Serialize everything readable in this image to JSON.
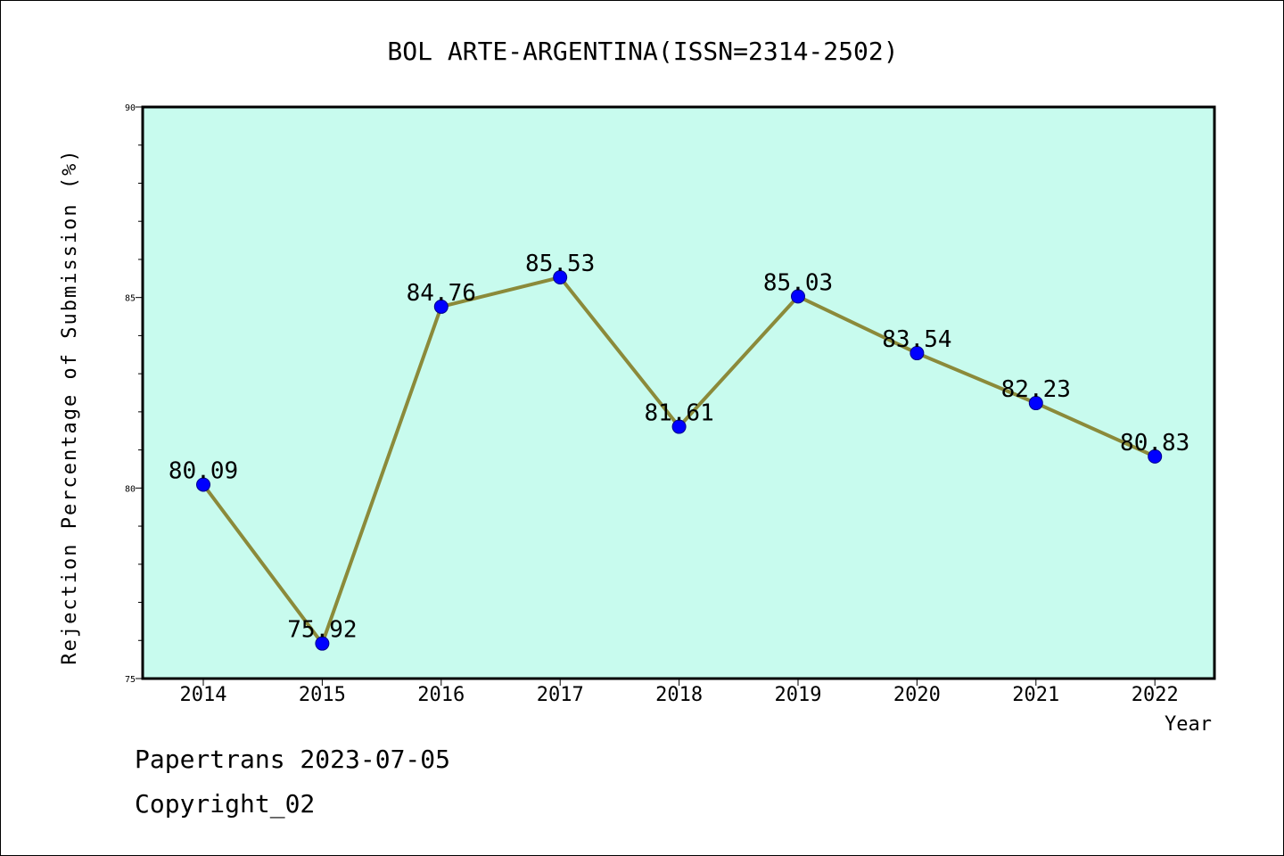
{
  "chart_data": {
    "type": "line",
    "title": "BOL ARTE-ARGENTINA(ISSN=2314-2502)",
    "xlabel": "Year",
    "ylabel": "Rejection Percentage of Submission (%)",
    "x": [
      "2014",
      "2015",
      "2016",
      "2017",
      "2018",
      "2019",
      "2020",
      "2021",
      "2022"
    ],
    "series": [
      {
        "values": [
          80.09,
          75.92,
          84.76,
          85.53,
          81.61,
          85.03,
          83.54,
          82.23,
          80.83
        ],
        "labels": [
          "80.09",
          "75.92",
          "84.76",
          "85.53",
          "81.61",
          "85.03",
          "83.54",
          "82.23",
          "80.83"
        ],
        "line_color": "#8b8a3a",
        "marker_color": "#0000ff"
      }
    ],
    "ylim": [
      75,
      90
    ],
    "yticks": [
      "75",
      "80",
      "85",
      "90"
    ],
    "plot_background": "#c8fbee",
    "grid": false
  },
  "footer": {
    "line1": "Papertrans 2023-07-05",
    "line2": "Copyright_02"
  }
}
